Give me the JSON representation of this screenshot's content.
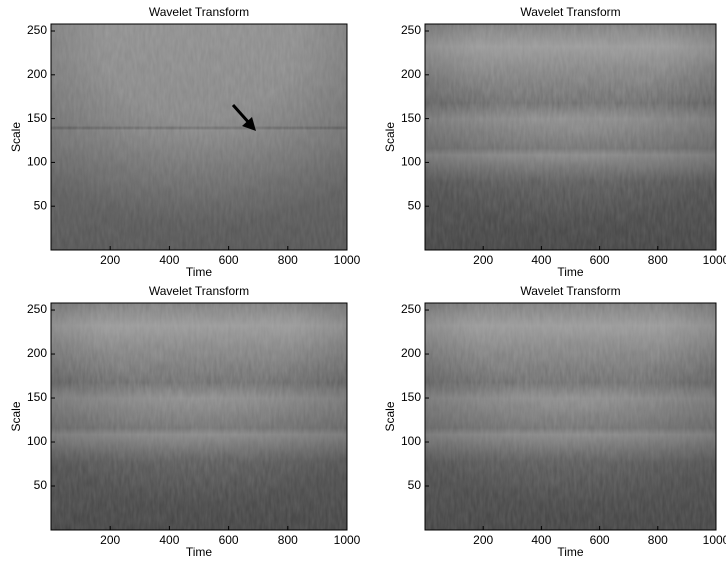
{
  "chart_data": [
    {
      "type": "heatmap",
      "title": "Wavelet Transform",
      "xlabel": "Time",
      "ylabel": "Scale",
      "xlim": [
        0,
        1000
      ],
      "ylim": [
        0,
        258
      ],
      "xticks": [
        200,
        400,
        600,
        800,
        1000
      ],
      "yticks": [
        50,
        100,
        150,
        200,
        250
      ]
    },
    {
      "type": "heatmap",
      "title": "Wavelet Transform",
      "xlabel": "Time",
      "ylabel": "Scale",
      "xlim": [
        0,
        1000
      ],
      "ylim": [
        0,
        258
      ],
      "xticks": [
        200,
        400,
        600,
        800,
        1000
      ],
      "yticks": [
        50,
        100,
        150,
        200,
        250
      ]
    },
    {
      "type": "heatmap",
      "title": "Wavelet Transform",
      "xlabel": "Time",
      "ylabel": "Scale",
      "xlim": [
        0,
        1000
      ],
      "ylim": [
        0,
        258
      ],
      "xticks": [
        200,
        400,
        600,
        800,
        1000
      ],
      "yticks": [
        50,
        100,
        150,
        200,
        250
      ]
    },
    {
      "type": "heatmap",
      "title": "Wavelet Transform",
      "xlabel": "Time",
      "ylabel": "Scale",
      "xlim": [
        0,
        1000
      ],
      "ylim": [
        0,
        258
      ],
      "xticks": [
        200,
        400,
        600,
        800,
        1000
      ],
      "yticks": [
        50,
        100,
        150,
        200,
        250
      ]
    }
  ]
}
